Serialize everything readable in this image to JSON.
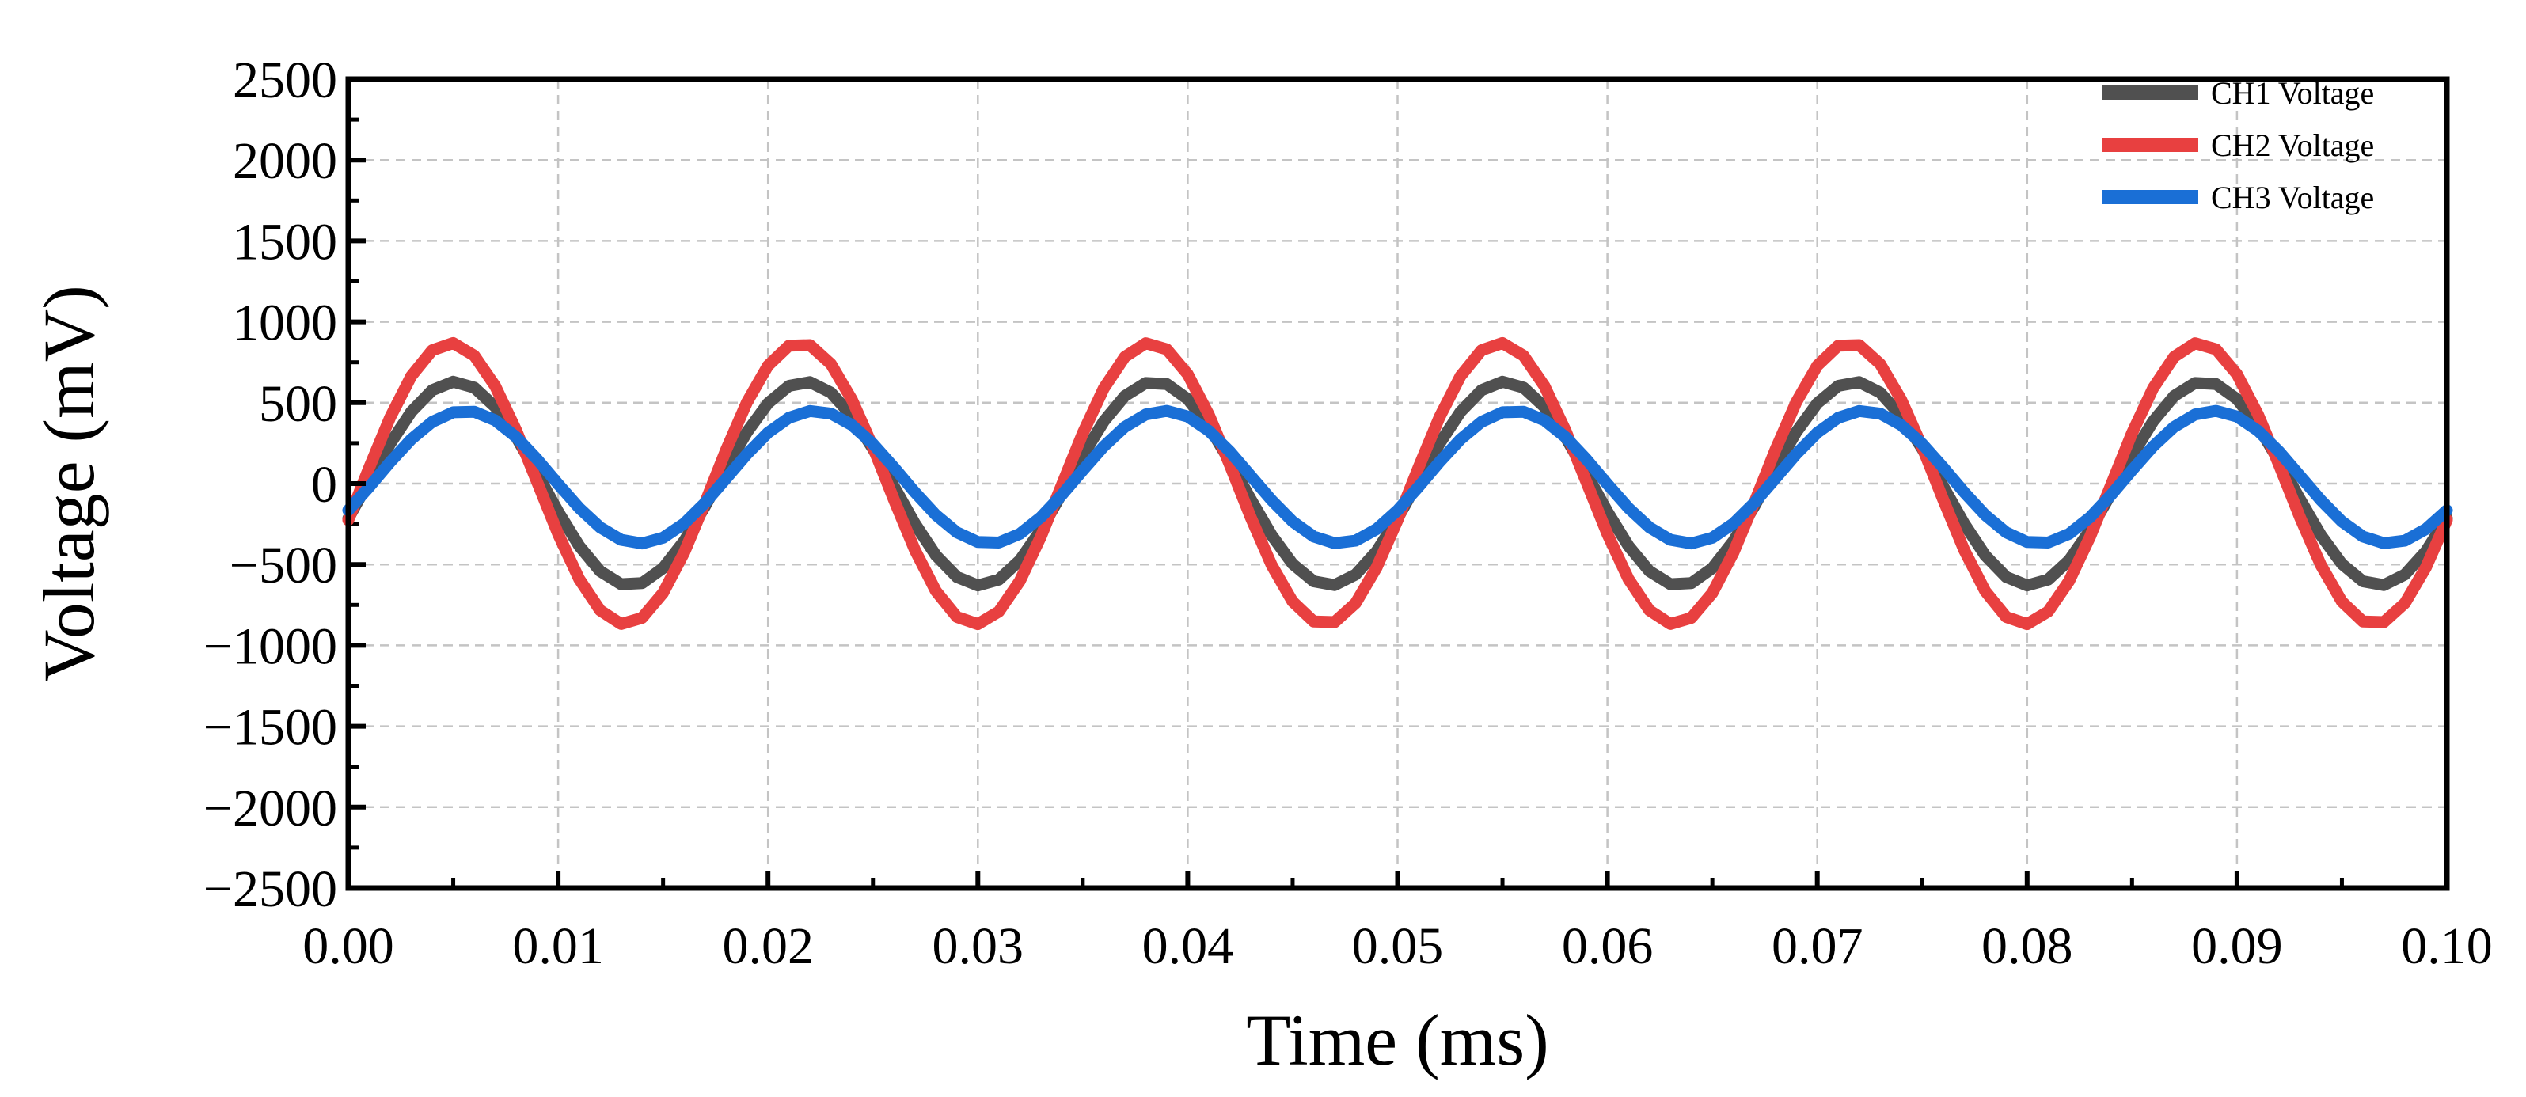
{
  "chart_data": {
    "type": "line",
    "title": "",
    "xlabel": "Time (ms)",
    "ylabel": "Voltage (mV)",
    "xlim": [
      0.0,
      0.1
    ],
    "ylim": [
      -2500,
      2500
    ],
    "x_ticks": [
      0.0,
      0.01,
      0.02,
      0.03,
      0.04,
      0.05,
      0.06,
      0.07,
      0.08,
      0.09,
      0.1
    ],
    "x_tick_labels": [
      "0.00",
      "0.01",
      "0.02",
      "0.03",
      "0.04",
      "0.05",
      "0.06",
      "0.07",
      "0.08",
      "0.09",
      "0.10"
    ],
    "y_ticks": [
      2500,
      2000,
      1500,
      1000,
      500,
      0,
      -500,
      -1000,
      -1500,
      -2000,
      -2500
    ],
    "y_tick_labels": [
      "2500",
      "2000",
      "1500",
      "1000",
      "500",
      "0",
      "−500",
      "−1000",
      "−1500",
      "−2000",
      "−2500"
    ],
    "grid": true,
    "legend_position": "top-right",
    "waveform": "sine",
    "frequency_khz": 60,
    "series": [
      {
        "name": "CH1 Voltage",
        "color": "#505050",
        "amplitude_mv": 630,
        "phase_deg": -20,
        "offset_mv": 0
      },
      {
        "name": "CH2 Voltage",
        "color": "#e84040",
        "amplitude_mv": 870,
        "phase_deg": -15,
        "offset_mv": 0
      },
      {
        "name": "CH3 Voltage",
        "color": "#1a6fd6",
        "amplitude_mv": 410,
        "phase_deg": -30,
        "offset_mv": 40
      }
    ],
    "sample_count": 101
  }
}
